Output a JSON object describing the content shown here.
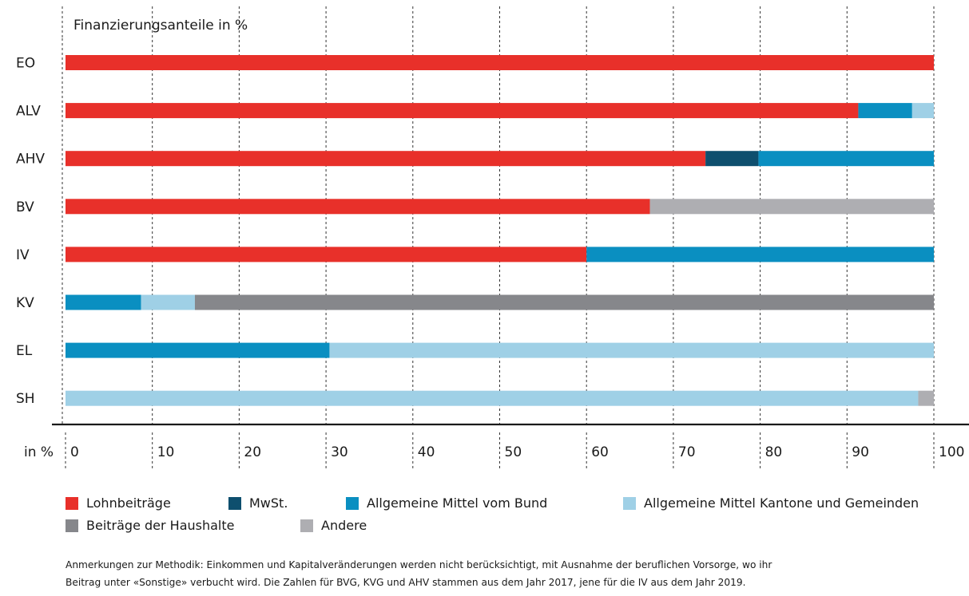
{
  "chart_data": {
    "type": "bar",
    "orientation": "horizontal",
    "stacked": true,
    "title": "Finanzierungsanteile in %",
    "xlabel": "in %",
    "xlim": [
      0,
      100
    ],
    "x_ticks": [
      "0",
      "10",
      "20",
      "30",
      "40",
      "50",
      "60",
      "70",
      "80",
      "90",
      "100"
    ],
    "grid": true,
    "legend_position": "bottom",
    "categories": [
      "EO",
      "ALV",
      "AHV",
      "BV",
      "IV",
      "KV",
      "EL",
      "SH"
    ],
    "series": [
      {
        "name": "Lohnbeiträge",
        "color": "#e8302a",
        "values": [
          100,
          91.3,
          73.7,
          67.3,
          60,
          0,
          0,
          0
        ]
      },
      {
        "name": "MwSt.",
        "color": "#0e4f6e",
        "values": [
          0,
          0,
          6.1,
          0,
          0,
          0,
          0,
          0
        ]
      },
      {
        "name": "Allgemeine Mittel vom Bund",
        "color": "#0a8fc1",
        "values": [
          0,
          6.2,
          20.2,
          0,
          40,
          8.7,
          30.4,
          0
        ]
      },
      {
        "name": "Allgemeine Mittel Kantone und Gemeinden",
        "color": "#9fd0e6",
        "values": [
          0,
          2.5,
          0,
          0,
          0,
          6.2,
          69.6,
          98.2
        ]
      },
      {
        "name": "Beiträge der Haushalte",
        "color": "#86878b",
        "values": [
          0,
          0,
          0,
          0,
          0,
          85.1,
          0,
          0
        ]
      },
      {
        "name": "Andere",
        "color": "#aeaeb2",
        "values": [
          0,
          0,
          0,
          32.7,
          0,
          0,
          0,
          1.8
        ]
      }
    ]
  },
  "note": {
    "line1": "Anmerkungen zur Methodik: Einkommen und Kapitalveränderungen werden nicht berücksichtigt, mit Ausnahme der beruflichen Vorsorge, wo ihr",
    "line2": "Beitrag unter «Sonstige» verbucht wird. Die Zahlen für BVG, KVG und AHV stammen aus dem Jahr 2017, jene für die IV aus dem Jahr 2019."
  }
}
